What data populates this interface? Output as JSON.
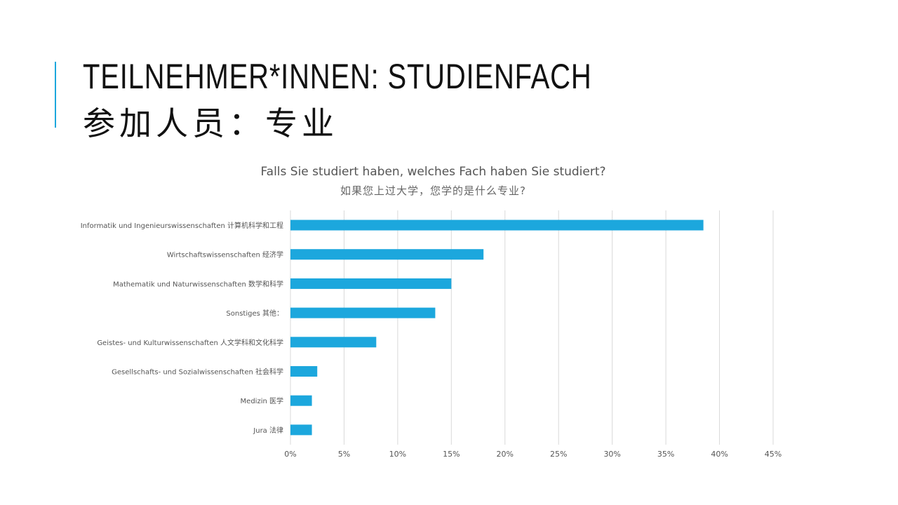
{
  "slide": {
    "title_line1": "TEILNEHMER*INNEN: STUDIENFACH",
    "title_line2": "参加人员：专业",
    "accent_color": "#1ca7dd"
  },
  "chart_data": {
    "type": "bar",
    "orientation": "horizontal",
    "title": "Falls Sie studiert haben, welches Fach haben Sie studiert?",
    "subtitle": "如果您上过大学，您学的是什么专业?",
    "categories": [
      "Informatik und Ingenieurswissenschaften 计算机科学和工程",
      "Wirtschaftswissenschaften 经济学",
      "Mathematik und Naturwissenschaften 数学和科学",
      "Sonstiges 其他：",
      "Geistes- und Kulturwissenschaften 人文学科和文化科学",
      "Gesellschafts- und Sozialwissenschaften 社会科学",
      "Medizin 医学",
      "Jura 法律"
    ],
    "values": [
      38.5,
      18,
      15,
      13.5,
      8,
      2.5,
      2,
      2
    ],
    "unit": "%",
    "xlim": [
      0,
      45
    ],
    "xticks": [
      0,
      5,
      10,
      15,
      20,
      25,
      30,
      35,
      40,
      45
    ],
    "xtick_labels": [
      "0%",
      "5%",
      "10%",
      "15%",
      "20%",
      "25%",
      "30%",
      "35%",
      "40%",
      "45%"
    ],
    "grid": "vertical",
    "legend": "none",
    "bar_color": "#1ca7dd",
    "grid_color": "#d9d9d9"
  }
}
